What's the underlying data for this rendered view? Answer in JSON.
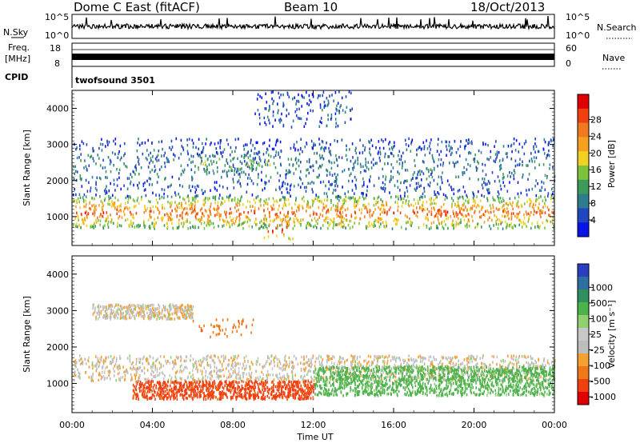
{
  "header": {
    "station": "Dome C East (fitACF)",
    "beam": "Beam 10",
    "date": "18/Oct/2013"
  },
  "left_labels": {
    "nsky": "N.Sky",
    "nsky_top": "10^5",
    "nsky_bottom": "10^0",
    "freq": "Freq.",
    "freq_unit": "[MHz]",
    "freq_top": "18",
    "freq_bottom": "8",
    "cpid": "CPID"
  },
  "right_labels": {
    "nsearch": "N.Search",
    "nsearch_top": "10^5",
    "nsearch_bottom": "10^0",
    "nave": "Nave",
    "nave_top": "60",
    "nave_bottom": "0"
  },
  "cpid_value": "twofsound 3501",
  "chart_data": [
    {
      "type": "heatmap",
      "name": "Power",
      "ylabel": "Slant Range [km]",
      "ylim": [
        200,
        4500
      ],
      "yticks": [
        1000,
        2000,
        3000,
        4000
      ],
      "xlim": [
        0,
        24
      ],
      "colorbar": {
        "label": "Power [dB]",
        "colors": [
          "#0a14e6",
          "#2245c0",
          "#2e7d8c",
          "#3c9a5a",
          "#7cc23c",
          "#f0d020",
          "#f5a020",
          "#f07a20",
          "#f04010",
          "#e00000"
        ],
        "ticks": [
          "4",
          "8",
          "12",
          "16",
          "20",
          "24",
          "28"
        ]
      },
      "regions": [
        {
          "desc": "main echo band",
          "x": [
            0,
            24
          ],
          "range_km": [
            700,
            1600
          ],
          "dominant_power_db": 24
        },
        {
          "desc": "low-power scatter",
          "x": [
            0,
            24
          ],
          "range_km": [
            1600,
            3200
          ],
          "dominant_power_db": 8
        },
        {
          "desc": "enhanced patch",
          "x": [
            9.5,
            11
          ],
          "range_km": [
            400,
            1000
          ],
          "dominant_power_db": 28
        },
        {
          "desc": "patchy echoes",
          "x": [
            6,
            10
          ],
          "range_km": [
            2200,
            2800
          ],
          "dominant_power_db": 14
        },
        {
          "desc": "sparse high-range",
          "x": [
            9,
            14
          ],
          "range_km": [
            3500,
            4500
          ],
          "dominant_power_db": 6
        }
      ]
    },
    {
      "type": "heatmap",
      "name": "Velocity",
      "ylabel": "Slant Range [km]",
      "ylim": [
        200,
        4500
      ],
      "yticks": [
        1000,
        2000,
        3000,
        4000
      ],
      "xlim": [
        0,
        24
      ],
      "xticks": [
        "00:00",
        "04:00",
        "08:00",
        "12:00",
        "16:00",
        "20:00",
        "00:00"
      ],
      "xlabel": "Time UT",
      "colorbar": {
        "label": "Velocity [m s⁻¹]",
        "colors": [
          "#2a3fc0",
          "#2f6ea0",
          "#2f8f5e",
          "#4cb24a",
          "#90d070",
          "#c8c8c8",
          "#bdbdbd",
          "#f5a030",
          "#f07818",
          "#f04010",
          "#e00000"
        ],
        "ticks": [
          "1000",
          "500",
          "100",
          "25",
          "-25",
          "-100",
          "-500",
          "-1000"
        ]
      },
      "regions": [
        {
          "desc": "near-zero ground scatter",
          "x": [
            0,
            24
          ],
          "range_km": [
            1100,
            1800
          ],
          "velocity_ms": 0
        },
        {
          "desc": "approaching flow",
          "x": [
            12,
            24
          ],
          "range_km": [
            700,
            1500
          ],
          "velocity_ms": 150
        },
        {
          "desc": "receding flow",
          "x": [
            3,
            12
          ],
          "range_km": [
            600,
            1100
          ],
          "velocity_ms": -300
        },
        {
          "desc": "receding patch",
          "x": [
            6,
            9
          ],
          "range_km": [
            2300,
            2800
          ],
          "velocity_ms": -200
        },
        {
          "desc": "ground scatter high-range",
          "x": [
            1,
            6
          ],
          "range_km": [
            2800,
            3200
          ],
          "velocity_ms": 0
        }
      ]
    }
  ]
}
